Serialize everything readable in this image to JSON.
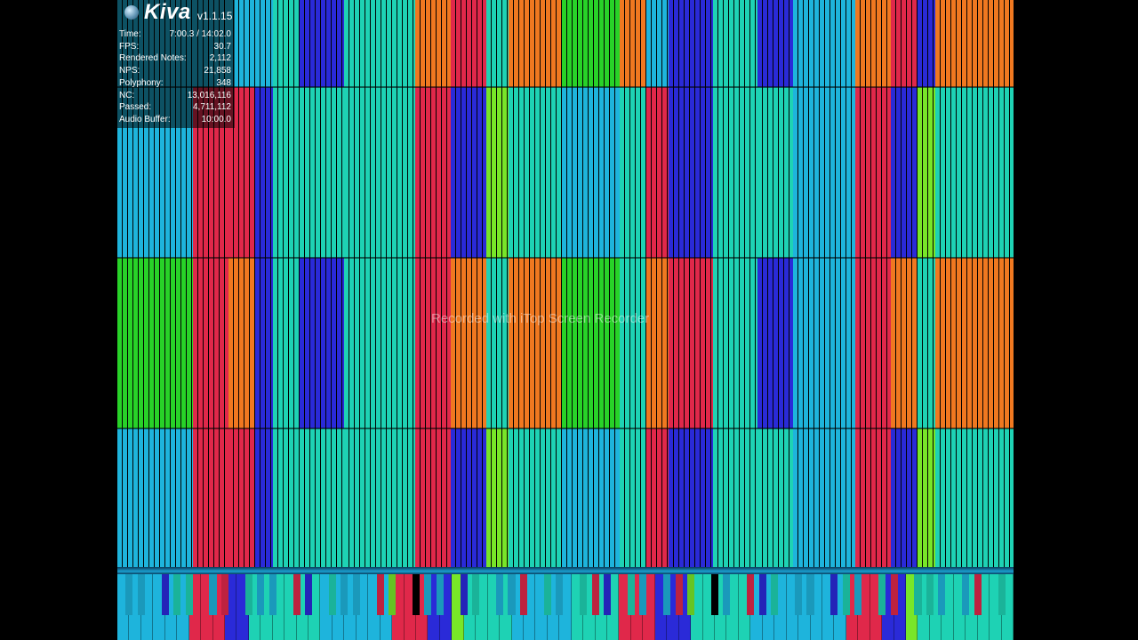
{
  "app": {
    "name": "Kiva",
    "version": "v1.1.15"
  },
  "stats": [
    {
      "label": "Time:",
      "value": "7:00.3 / 14:02.0"
    },
    {
      "label": "FPS:",
      "value": "30.7"
    },
    {
      "label": "Rendered Notes:",
      "value": "2,112"
    },
    {
      "label": "NPS:",
      "value": "21,858"
    },
    {
      "label": "Polyphony:",
      "value": "348"
    },
    {
      "label": "NC:",
      "value": "13,016,116"
    },
    {
      "label": "Passed:",
      "value": "4,711,112"
    },
    {
      "label": "Audio Buffer:",
      "value": "10:00.0"
    }
  ],
  "watermark": "Recorded with iTop Screen Recorder",
  "colors": {
    "cyan": "#1eb4dc",
    "teal": "#1ed2b4",
    "blue": "#2a2ad8",
    "red": "#e0284a",
    "orange": "#f07820",
    "green": "#28d228",
    "lime": "#78e628",
    "background": "#000000"
  }
}
